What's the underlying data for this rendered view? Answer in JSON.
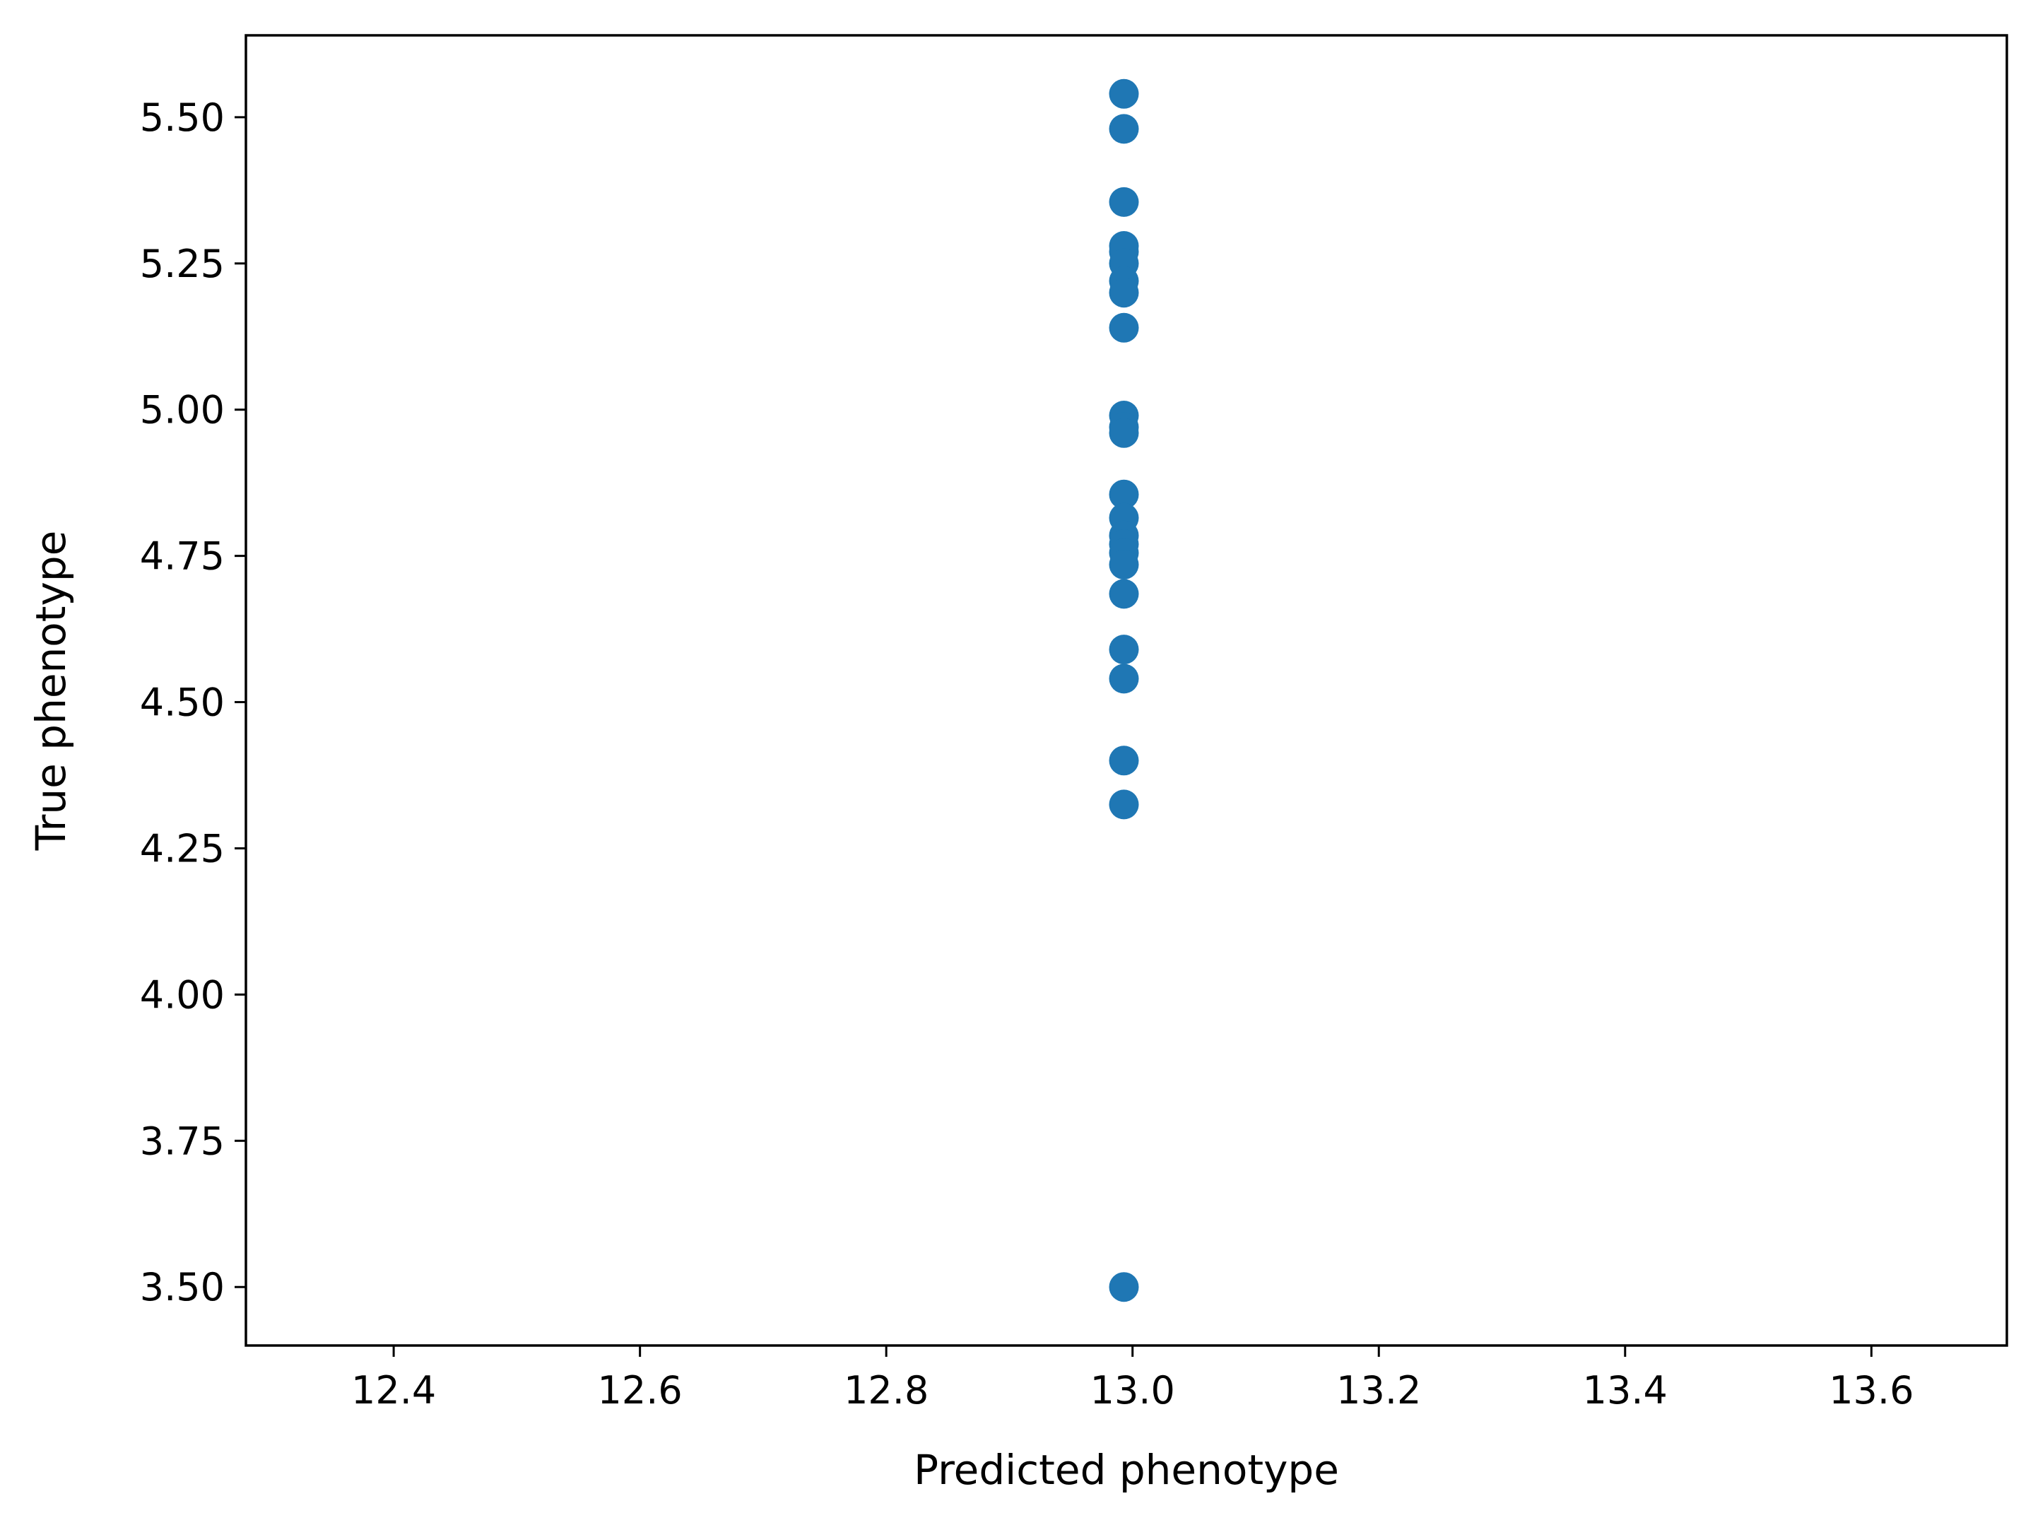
{
  "chart_data": {
    "type": "scatter",
    "title": "",
    "xlabel": "Predicted phenotype",
    "ylabel": "True phenotype",
    "xlim": [
      12.28,
      13.71
    ],
    "ylim": [
      3.4,
      5.64
    ],
    "grid": false,
    "legend": "none",
    "x_ticks": [
      12.4,
      12.6,
      12.8,
      13.0,
      13.2,
      13.4,
      13.6
    ],
    "x_tick_labels": [
      "12.4",
      "12.6",
      "12.8",
      "13.0",
      "13.2",
      "13.4",
      "13.6"
    ],
    "y_ticks": [
      3.5,
      3.75,
      4.0,
      4.25,
      4.5,
      4.75,
      5.0,
      5.25,
      5.5
    ],
    "y_tick_labels": [
      "3.50",
      "3.75",
      "4.00",
      "4.25",
      "4.50",
      "4.75",
      "5.00",
      "5.25",
      "5.50"
    ],
    "colors": {
      "marker": "#1f77b4",
      "axes": "#000000",
      "background": "#ffffff"
    },
    "series": [
      {
        "x": [
          12.993,
          12.993,
          12.993,
          12.993,
          12.993,
          12.993,
          12.993,
          12.993,
          12.993,
          12.993,
          12.993,
          12.993,
          12.993,
          12.993,
          12.993,
          12.993,
          12.993,
          12.993,
          12.993,
          12.993,
          12.993,
          12.993,
          12.993,
          12.993
        ],
        "y": [
          5.54,
          5.48,
          5.355,
          5.28,
          5.27,
          5.25,
          5.22,
          5.2,
          5.14,
          4.99,
          4.97,
          4.96,
          4.855,
          4.815,
          4.785,
          4.77,
          4.755,
          4.735,
          4.685,
          4.59,
          4.54,
          4.4,
          4.325,
          3.5
        ]
      }
    ]
  }
}
